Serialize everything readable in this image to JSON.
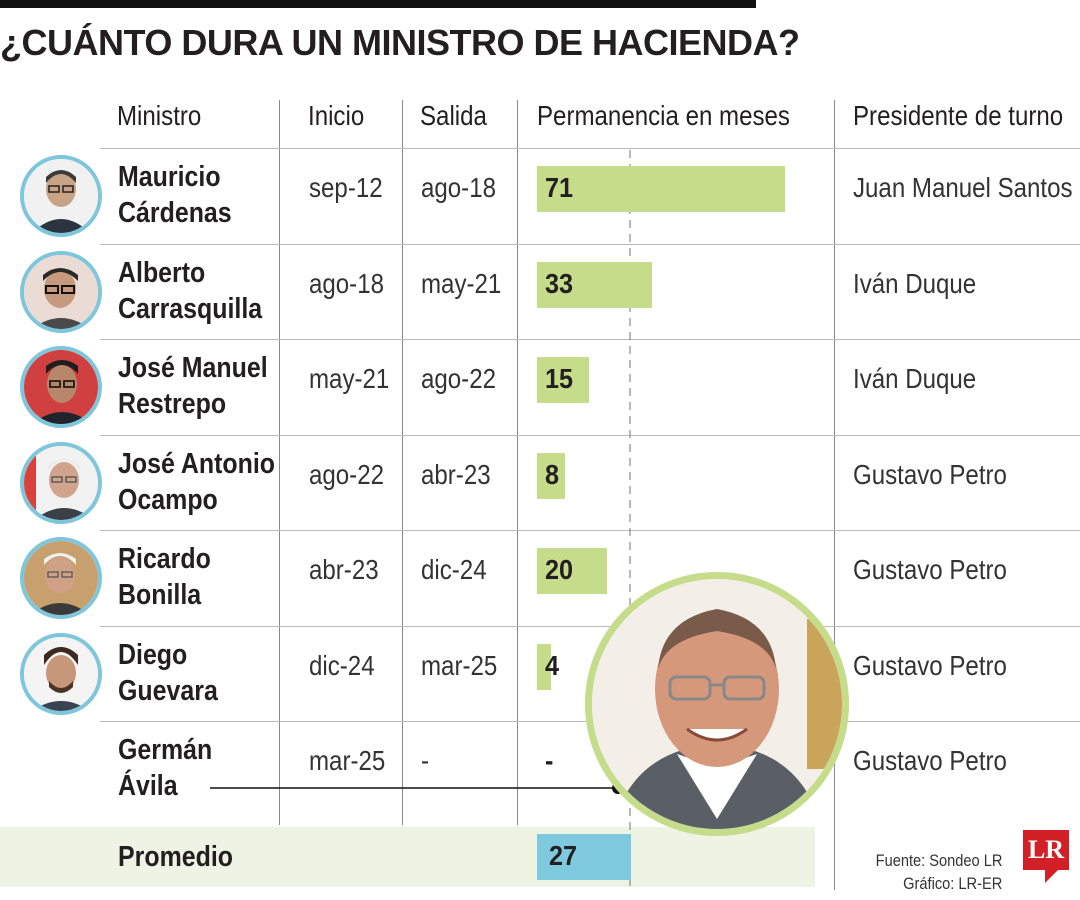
{
  "title": "¿CUÁNTO DURA UN MINISTRO DE HACIENDA?",
  "headers": {
    "ministro": "Ministro",
    "inicio": "Inicio",
    "salida": "Salida",
    "permanencia": "Permanencia en meses",
    "presidente": "Presidente de turno"
  },
  "rows": [
    {
      "name1": "Mauricio",
      "name2": "Cárdenas",
      "inicio": "sep-12",
      "salida": "ago-18",
      "label": "71",
      "months": 71,
      "presidente": "Juan Manuel Santos"
    },
    {
      "name1": "Alberto",
      "name2": "Carrasquilla",
      "inicio": "ago-18",
      "salida": "may-21",
      "label": "33",
      "months": 33,
      "presidente": "Iván Duque"
    },
    {
      "name1": "José Manuel",
      "name2": "Restrepo",
      "inicio": "may-21",
      "salida": "ago-22",
      "label": "15",
      "months": 15,
      "presidente": "Iván Duque"
    },
    {
      "name1": "José Antonio",
      "name2": "Ocampo",
      "inicio": "ago-22",
      "salida": "abr-23",
      "label": "8",
      "months": 8,
      "presidente": "Gustavo Petro"
    },
    {
      "name1": "Ricardo",
      "name2": "Bonilla",
      "inicio": "abr-23",
      "salida": "dic-24",
      "label": "20",
      "months": 20,
      "presidente": "Gustavo Petro"
    },
    {
      "name1": "Diego",
      "name2": "Guevara",
      "inicio": "dic-24",
      "salida": "mar-25",
      "label": "4",
      "months": 4,
      "presidente": "Gustavo Petro"
    },
    {
      "name1": "Germán",
      "name2": "Ávila",
      "inicio": "mar-25",
      "salida": "-",
      "label": "-",
      "months": null,
      "presidente": "Gustavo Petro"
    }
  ],
  "promedio": {
    "label": "Promedio",
    "value_label": "27",
    "value": 27
  },
  "source": "Fuente: Sondeo LR",
  "graphic": "Gráfico: LR-ER",
  "logo": "LR",
  "colors": {
    "bar": "#c5dc8a",
    "average_bar": "#7fc9df",
    "ring": "#7ec6dc",
    "logo": "#d32027"
  },
  "chart_data": {
    "type": "bar",
    "categories": [
      "Mauricio Cárdenas",
      "Alberto Carrasquilla",
      "José Manuel Restrepo",
      "José Antonio Ocampo",
      "Ricardo Bonilla",
      "Diego Guevara",
      "Germán Ávila"
    ],
    "values": [
      71,
      33,
      15,
      8,
      20,
      4,
      null
    ],
    "average": 27,
    "xlabel": "Permanencia en meses",
    "orientation": "horizontal"
  }
}
